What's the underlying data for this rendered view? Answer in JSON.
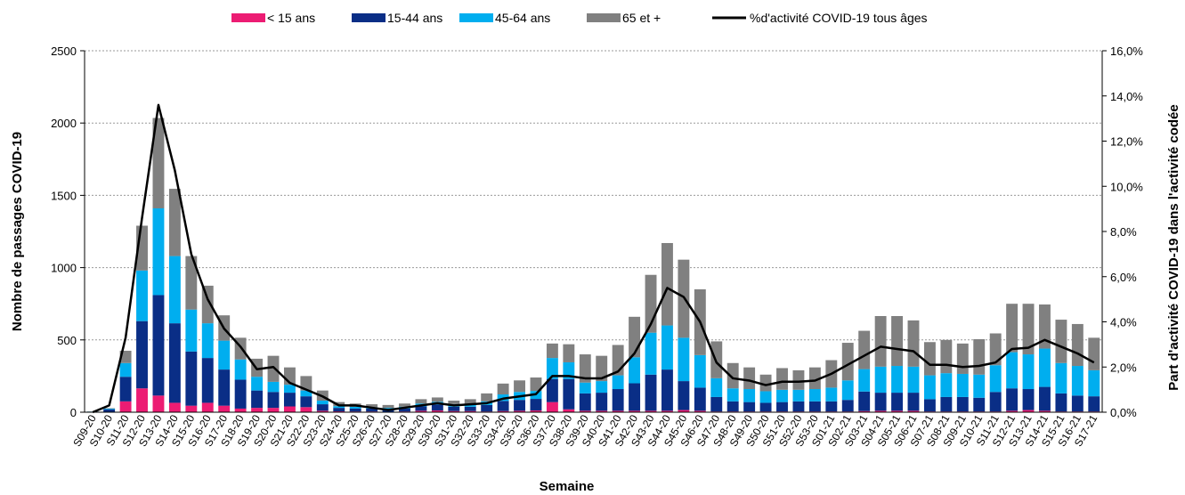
{
  "chart_data": {
    "type": "bar",
    "stacked": true,
    "categories": [
      "S09-20",
      "S10-20",
      "S11-20",
      "S12-20",
      "S13-20",
      "S14-20",
      "S15-20",
      "S16-20",
      "S17-20",
      "S18-20",
      "S19-20",
      "S20-20",
      "S21-20",
      "S22-20",
      "S23-20",
      "S24-20",
      "S25-20",
      "S26-20",
      "S27-20",
      "S28-20",
      "S29-20",
      "S30-20",
      "S31-20",
      "S32-20",
      "S33-20",
      "S34-20",
      "S35-20",
      "S36-20",
      "S37-20",
      "S38-20",
      "S39-20",
      "S40-20",
      "S41-20",
      "S42-20",
      "S43-20",
      "S44-20",
      "S45-20",
      "S46-20",
      "S47-20",
      "S48-20",
      "S49-20",
      "S50-20",
      "S51-20",
      "S52-20",
      "S53-20",
      "S01-21",
      "S02-21",
      "S03-21",
      "S04-21",
      "S05-21",
      "S06-21",
      "S07-21",
      "S08-21",
      "S09-21",
      "S10-21",
      "S11-21",
      "S12-21",
      "S13-21",
      "S14-21",
      "S15-21",
      "S16-21",
      "S17-21"
    ],
    "series": [
      {
        "name": "< 15 ans",
        "color": "#ec1c73",
        "values": [
          0,
          3,
          75,
          165,
          115,
          65,
          45,
          65,
          45,
          25,
          30,
          30,
          40,
          35,
          10,
          6,
          5,
          5,
          3,
          5,
          10,
          12,
          8,
          8,
          5,
          8,
          10,
          12,
          70,
          20,
          10,
          10,
          10,
          10,
          10,
          10,
          15,
          10,
          5,
          5,
          5,
          5,
          5,
          5,
          5,
          5,
          5,
          8,
          10,
          10,
          10,
          5,
          5,
          5,
          5,
          5,
          10,
          15,
          10,
          5,
          5,
          5
        ]
      },
      {
        "name": "15-44 ans",
        "color": "#0a2e86",
        "values": [
          2,
          17,
          170,
          465,
          695,
          550,
          375,
          310,
          250,
          200,
          120,
          110,
          95,
          75,
          45,
          24,
          20,
          20,
          17,
          20,
          30,
          40,
          30,
          30,
          45,
          70,
          75,
          80,
          160,
          210,
          120,
          125,
          150,
          190,
          250,
          285,
          200,
          160,
          100,
          70,
          65,
          60,
          65,
          70,
          70,
          70,
          80,
          135,
          125,
          125,
          125,
          85,
          100,
          100,
          95,
          135,
          155,
          145,
          165,
          125,
          110,
          105
        ]
      },
      {
        "name": "45-64 ans",
        "color": "#00aeef",
        "values": [
          2,
          5,
          95,
          350,
          600,
          465,
          290,
          240,
          200,
          140,
          95,
          70,
          55,
          40,
          25,
          12,
          12,
          10,
          10,
          13,
          20,
          20,
          18,
          20,
          25,
          45,
          55,
          55,
          145,
          115,
          75,
          80,
          95,
          180,
          290,
          305,
          300,
          225,
          130,
          90,
          90,
          80,
          85,
          80,
          85,
          95,
          135,
          155,
          180,
          185,
          180,
          165,
          165,
          160,
          160,
          185,
          250,
          240,
          265,
          210,
          205,
          180
        ]
      },
      {
        "name": "65 et +",
        "color": "#808080",
        "values": [
          1,
          3,
          85,
          310,
          625,
          465,
          370,
          260,
          175,
          150,
          125,
          180,
          120,
          100,
          70,
          28,
          23,
          20,
          20,
          22,
          30,
          30,
          24,
          32,
          55,
          75,
          80,
          93,
          100,
          125,
          195,
          175,
          210,
          280,
          400,
          570,
          540,
          455,
          255,
          175,
          150,
          115,
          150,
          135,
          150,
          190,
          260,
          265,
          350,
          345,
          320,
          230,
          230,
          210,
          245,
          220,
          335,
          350,
          305,
          300,
          290,
          225
        ]
      },
      {
        "name": "%d'activité COVID-19 tous âges",
        "type": "line",
        "axis": "right",
        "color": "#000000",
        "values": [
          0.0,
          0.3,
          3.3,
          8.6,
          13.6,
          10.7,
          7.0,
          5.0,
          3.7,
          2.9,
          1.9,
          2.0,
          1.3,
          1.0,
          0.7,
          0.3,
          0.3,
          0.2,
          0.1,
          0.2,
          0.3,
          0.4,
          0.3,
          0.35,
          0.4,
          0.6,
          0.7,
          0.8,
          1.6,
          1.6,
          1.5,
          1.5,
          1.8,
          2.6,
          3.9,
          5.5,
          5.1,
          4.0,
          2.2,
          1.5,
          1.4,
          1.2,
          1.35,
          1.35,
          1.4,
          1.7,
          2.1,
          2.5,
          2.9,
          2.8,
          2.7,
          2.1,
          2.1,
          2.0,
          2.05,
          2.2,
          2.8,
          2.85,
          3.2,
          2.9,
          2.6,
          2.2
        ]
      }
    ],
    "xlabel": "Semaine",
    "ylabel": "Nombre de passages COVID-19",
    "y2label": "Part d'activité COVID-19 dans l'activité codée",
    "ylim": [
      0,
      2500
    ],
    "yticks": [
      "0",
      "500",
      "1000",
      "1500",
      "2000",
      "2500"
    ],
    "y2lim": [
      0,
      16
    ],
    "y2ticks": [
      "0,0%",
      "2,0%",
      "4,0%",
      "6,0%",
      "8,0%",
      "10,0%",
      "12,0%",
      "14,0%",
      "16,0%"
    ],
    "grid": true,
    "legend_position": "top"
  }
}
